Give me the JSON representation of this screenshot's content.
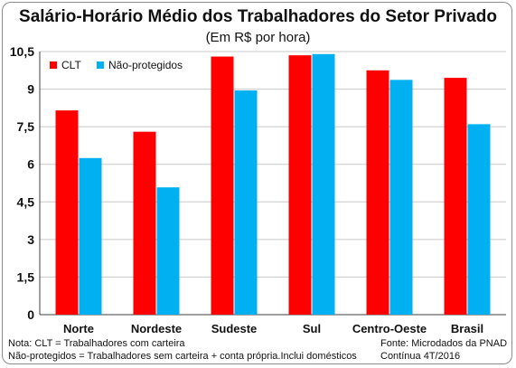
{
  "chart_data": {
    "type": "bar",
    "title": "Salário-Horário Médio dos Trabalhadores do Setor Privado",
    "subtitle": "(Em R$ por hora)",
    "categories": [
      "Norte",
      "Nordeste",
      "Sudeste",
      "Sul",
      "Centro-Oeste",
      "Brasil"
    ],
    "series": [
      {
        "name": "CLT",
        "values": [
          8.15,
          7.3,
          10.3,
          10.35,
          9.75,
          9.45
        ]
      },
      {
        "name": "Não-protegidos",
        "values": [
          6.25,
          5.08,
          8.95,
          10.4,
          9.37,
          7.6
        ]
      }
    ],
    "colors": [
      "#ff0000",
      "#00b0f0"
    ],
    "ylim": [
      0,
      10.5
    ],
    "yticks": [
      "0",
      "1,5",
      "3",
      "4,5",
      "6",
      "7,5",
      "9",
      "10,5"
    ],
    "grid": true,
    "legend_position": "top-left",
    "xlabel": "",
    "ylabel": ""
  },
  "notes": {
    "left_line1": "Nota: CLT = Trabalhadores com carteira",
    "left_line2": "Não-protegidos = Trabalhadores sem carteira + conta própria.Inclui domésticos",
    "right_line1": "Fonte: Microdados da PNAD",
    "right_line2": "Contínua 4T/2016"
  }
}
